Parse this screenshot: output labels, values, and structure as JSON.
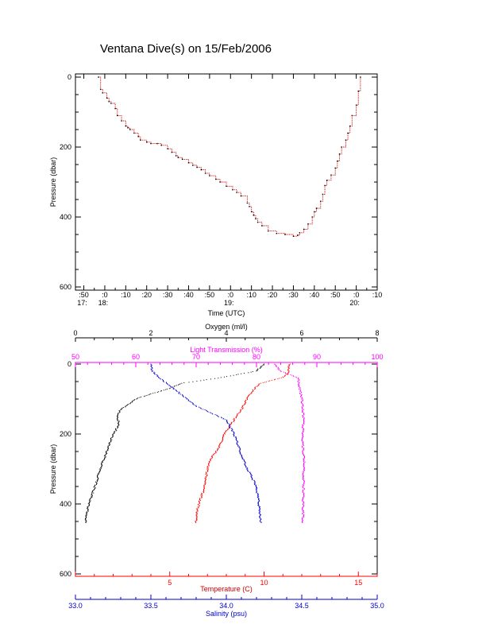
{
  "title": "Ventana Dive(s) on 15/Feb/2006",
  "colors": {
    "axis": "#000000",
    "track": "#cc0000",
    "track_knot": "#000000",
    "temperature": "#ff0000",
    "salinity": "#0000cc",
    "oxygen": "#000000",
    "transmission": "#ff00ff"
  },
  "top_chart": {
    "type": "line",
    "xlabel": "Time (UTC)",
    "ylabel": "Pressure (dbar)",
    "x_unit": "minutes after 17:00 UTC",
    "xlim": [
      46,
      190
    ],
    "ylim": [
      0,
      600
    ],
    "y_inverted": true,
    "y_ticks": [
      0,
      200,
      400,
      600
    ],
    "x_ticks": [
      {
        "t": 50,
        "label": ":50",
        "hour": "17:"
      },
      {
        "t": 60,
        "label": ":0",
        "hour": "18:"
      },
      {
        "t": 70,
        "label": ":10"
      },
      {
        "t": 80,
        "label": ":20"
      },
      {
        "t": 90,
        "label": ":30"
      },
      {
        "t": 100,
        "label": ":40"
      },
      {
        "t": 110,
        "label": ":50"
      },
      {
        "t": 120,
        "label": ":0",
        "hour": "19:"
      },
      {
        "t": 130,
        "label": ":10"
      },
      {
        "t": 140,
        "label": ":20"
      },
      {
        "t": 150,
        "label": ":30"
      },
      {
        "t": 160,
        "label": ":40"
      },
      {
        "t": 170,
        "label": ":50"
      },
      {
        "t": 180,
        "label": ":0",
        "hour": "20:"
      },
      {
        "t": 190,
        "label": ":10"
      }
    ],
    "series": [
      {
        "x": [
          57,
          58,
          59,
          61,
          62,
          63,
          65,
          66,
          68,
          70,
          71,
          72,
          74,
          76,
          77,
          80,
          82,
          85,
          87,
          90,
          92,
          94,
          95,
          97,
          100,
          102,
          104,
          106,
          108,
          110,
          113,
          115,
          118,
          121,
          123,
          125,
          128,
          129,
          130,
          131,
          132,
          133,
          135,
          138,
          142,
          146,
          150,
          152,
          153,
          155,
          157,
          159,
          160,
          161,
          163,
          164,
          165,
          166,
          168,
          170,
          171,
          172,
          173,
          175,
          176,
          177,
          178,
          180,
          181,
          182
        ],
        "y": [
          0,
          35,
          45,
          60,
          70,
          75,
          90,
          110,
          125,
          140,
          145,
          150,
          160,
          170,
          180,
          186,
          190,
          190,
          195,
          205,
          215,
          225,
          230,
          235,
          245,
          252,
          258,
          265,
          275,
          282,
          292,
          300,
          312,
          322,
          330,
          340,
          360,
          370,
          385,
          395,
          405,
          415,
          425,
          440,
          447,
          450,
          455,
          452,
          445,
          435,
          420,
          400,
          385,
          375,
          355,
          335,
          310,
          295,
          280,
          260,
          240,
          220,
          200,
          180,
          160,
          140,
          110,
          80,
          40,
          0
        ]
      }
    ]
  },
  "bottom_chart": {
    "type": "scatter",
    "ylabel": "Pressure (dbar)",
    "ylim": [
      0,
      600
    ],
    "y_inverted": true,
    "y_ticks": [
      0,
      200,
      400,
      600
    ],
    "axes": {
      "oxygen": {
        "label": "Oxygen (ml/l)",
        "lim": [
          0,
          8
        ],
        "ticks": [
          0,
          2,
          4,
          6,
          8
        ]
      },
      "transmission": {
        "label": "Light Transmission (%)",
        "lim": [
          50,
          100
        ],
        "ticks": [
          50,
          60,
          70,
          80,
          90,
          100
        ]
      },
      "temperature": {
        "label": "Temperature (C)",
        "lim": [
          0,
          16
        ],
        "ticks": [
          5,
          10,
          15
        ]
      },
      "salinity": {
        "label": "Salinity (psu)",
        "lim": [
          33.0,
          35.0
        ],
        "ticks": [
          "33.0",
          "33.5",
          "34.0",
          "34.5",
          "35.0"
        ]
      }
    },
    "series": [
      {
        "axis": "oxygen",
        "pressure": [
          0,
          20,
          40,
          55,
          70,
          85,
          100,
          115,
          130,
          150,
          165,
          180,
          200,
          230,
          260,
          300,
          340,
          370,
          400,
          430,
          455
        ],
        "values": [
          5.0,
          4.8,
          3.8,
          2.8,
          2.5,
          2.0,
          1.6,
          1.4,
          1.2,
          1.1,
          1.15,
          1.12,
          1.0,
          0.9,
          0.8,
          0.65,
          0.55,
          0.45,
          0.35,
          0.3,
          0.26
        ]
      },
      {
        "axis": "transmission",
        "pressure": [
          0,
          20,
          40,
          60,
          80,
          100,
          130,
          160,
          200,
          240,
          280,
          320,
          360,
          400,
          430,
          455
        ],
        "values": [
          83,
          84,
          87,
          87,
          87.3,
          87.5,
          87.7,
          87.8,
          87.6,
          87.7,
          87.9,
          87.8,
          87.8,
          87.7,
          87.7,
          87.7
        ]
      },
      {
        "axis": "temperature",
        "pressure": [
          0,
          10,
          20,
          30,
          38,
          45,
          55,
          75,
          100,
          130,
          160,
          200,
          240,
          260,
          280,
          300,
          330,
          360,
          390,
          410,
          430,
          455
        ],
        "values": [
          11.4,
          11.3,
          11.3,
          11.2,
          11.0,
          10.5,
          9.8,
          9.4,
          9.1,
          8.8,
          8.4,
          7.9,
          7.6,
          7.3,
          7.1,
          7.0,
          6.9,
          6.8,
          6.6,
          6.5,
          6.4,
          6.4
        ]
      },
      {
        "axis": "salinity",
        "pressure": [
          0,
          20,
          40,
          60,
          80,
          100,
          120,
          140,
          160,
          190,
          220,
          260,
          300,
          340,
          380,
          420,
          455
        ],
        "values": [
          33.5,
          33.51,
          33.56,
          33.62,
          33.68,
          33.74,
          33.8,
          33.9,
          34.0,
          34.04,
          34.07,
          34.1,
          34.14,
          34.19,
          34.21,
          34.22,
          34.23
        ]
      }
    ]
  }
}
